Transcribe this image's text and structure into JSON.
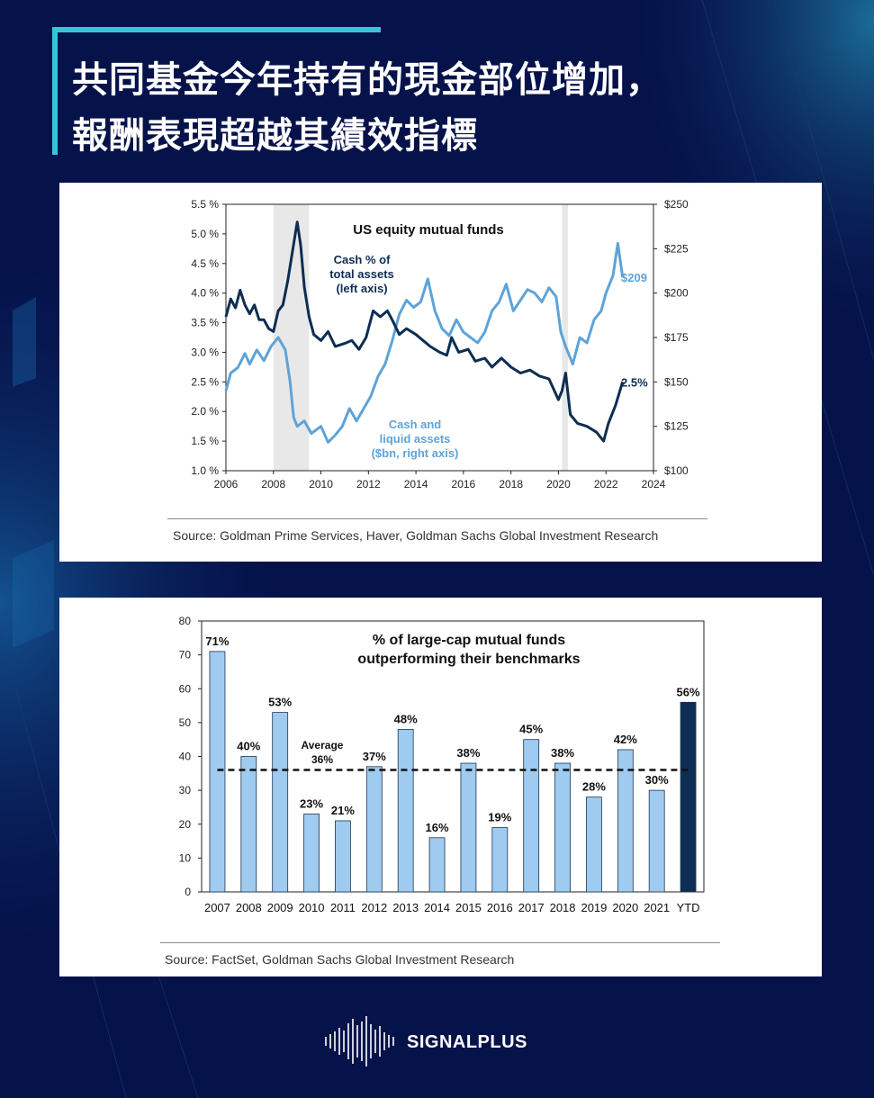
{
  "header": {
    "title_line1": "共同基金今年持有的現金部位增加，",
    "title_line2": "報酬表現超越其績效指標"
  },
  "brand": {
    "name": "SIGNALPLUS",
    "logo_icon": "soundwave-logo-icon"
  },
  "colors": {
    "background": "#06124a",
    "accent": "#39c4d9",
    "dark_series": "#0d2d52",
    "light_series": "#5ea3d8",
    "recession": "#e8e8e8"
  },
  "chart_data": [
    {
      "type": "line",
      "title": "US equity mutual funds",
      "x_ticks": [
        "2006",
        "2008",
        "2010",
        "2012",
        "2014",
        "2016",
        "2018",
        "2020",
        "2022",
        "2024"
      ],
      "xlim": [
        2006,
        2024
      ],
      "y_left": {
        "ticks": [
          "5.5 %",
          "5.0 %",
          "4.5 %",
          "4.0 %",
          "3.5 %",
          "3.0 %",
          "2.5 %",
          "2.0 %",
          "1.5 %",
          "1.0 %"
        ],
        "lim": [
          1.0,
          5.5
        ]
      },
      "y_right": {
        "ticks": [
          "$250",
          "$225",
          "$200",
          "$175",
          "$150",
          "$125",
          "$100"
        ],
        "lim": [
          100,
          250
        ]
      },
      "shaded_periods": [
        [
          2008.0,
          2009.5
        ],
        [
          2020.15,
          2020.4
        ]
      ],
      "series": [
        {
          "name": "Cash % of\ntotal assets\n(left axis)",
          "axis": "left",
          "end_label": "2.5%",
          "points": [
            [
              2006.0,
              3.6
            ],
            [
              2006.2,
              3.9
            ],
            [
              2006.4,
              3.75
            ],
            [
              2006.6,
              4.05
            ],
            [
              2006.8,
              3.8
            ],
            [
              2007.0,
              3.65
            ],
            [
              2007.2,
              3.8
            ],
            [
              2007.4,
              3.55
            ],
            [
              2007.6,
              3.55
            ],
            [
              2007.8,
              3.4
            ],
            [
              2008.0,
              3.35
            ],
            [
              2008.2,
              3.7
            ],
            [
              2008.4,
              3.8
            ],
            [
              2008.6,
              4.2
            ],
            [
              2008.8,
              4.7
            ],
            [
              2009.0,
              5.2
            ],
            [
              2009.15,
              4.8
            ],
            [
              2009.3,
              4.1
            ],
            [
              2009.5,
              3.6
            ],
            [
              2009.7,
              3.3
            ],
            [
              2010.0,
              3.2
            ],
            [
              2010.3,
              3.35
            ],
            [
              2010.6,
              3.1
            ],
            [
              2011.0,
              3.15
            ],
            [
              2011.3,
              3.2
            ],
            [
              2011.6,
              3.05
            ],
            [
              2011.9,
              3.25
            ],
            [
              2012.2,
              3.7
            ],
            [
              2012.5,
              3.6
            ],
            [
              2012.8,
              3.7
            ],
            [
              2013.0,
              3.55
            ],
            [
              2013.3,
              3.3
            ],
            [
              2013.6,
              3.4
            ],
            [
              2014.0,
              3.3
            ],
            [
              2014.3,
              3.2
            ],
            [
              2014.6,
              3.1
            ],
            [
              2015.0,
              3.0
            ],
            [
              2015.3,
              2.95
            ],
            [
              2015.5,
              3.25
            ],
            [
              2015.8,
              3.0
            ],
            [
              2016.2,
              3.05
            ],
            [
              2016.5,
              2.85
            ],
            [
              2016.9,
              2.9
            ],
            [
              2017.2,
              2.75
            ],
            [
              2017.6,
              2.9
            ],
            [
              2018.0,
              2.75
            ],
            [
              2018.4,
              2.65
            ],
            [
              2018.8,
              2.7
            ],
            [
              2019.2,
              2.6
            ],
            [
              2019.6,
              2.55
            ],
            [
              2020.0,
              2.2
            ],
            [
              2020.15,
              2.35
            ],
            [
              2020.3,
              2.65
            ],
            [
              2020.5,
              1.95
            ],
            [
              2020.8,
              1.8
            ],
            [
              2021.2,
              1.75
            ],
            [
              2021.6,
              1.65
            ],
            [
              2021.9,
              1.5
            ],
            [
              2022.1,
              1.8
            ],
            [
              2022.4,
              2.1
            ],
            [
              2022.7,
              2.5
            ]
          ]
        },
        {
          "name": "Cash and\nliquid assets\n($bn, right axis)",
          "axis": "right",
          "end_label": "$209",
          "points": [
            [
              2006.0,
              145
            ],
            [
              2006.2,
              155
            ],
            [
              2006.5,
              158
            ],
            [
              2006.8,
              166
            ],
            [
              2007.0,
              160
            ],
            [
              2007.3,
              168
            ],
            [
              2007.6,
              162
            ],
            [
              2007.9,
              170
            ],
            [
              2008.2,
              175
            ],
            [
              2008.5,
              168
            ],
            [
              2008.7,
              150
            ],
            [
              2008.85,
              130
            ],
            [
              2009.0,
              125
            ],
            [
              2009.3,
              128
            ],
            [
              2009.6,
              121
            ],
            [
              2010.0,
              125
            ],
            [
              2010.3,
              116
            ],
            [
              2010.6,
              120
            ],
            [
              2010.9,
              125
            ],
            [
              2011.2,
              135
            ],
            [
              2011.5,
              128
            ],
            [
              2011.8,
              135
            ],
            [
              2012.1,
              142
            ],
            [
              2012.4,
              153
            ],
            [
              2012.7,
              160
            ],
            [
              2013.0,
              173
            ],
            [
              2013.3,
              188
            ],
            [
              2013.6,
              196
            ],
            [
              2013.9,
              192
            ],
            [
              2014.2,
              195
            ],
            [
              2014.5,
              208
            ],
            [
              2014.8,
              190
            ],
            [
              2015.1,
              180
            ],
            [
              2015.4,
              176
            ],
            [
              2015.7,
              185
            ],
            [
              2016.0,
              178
            ],
            [
              2016.3,
              175
            ],
            [
              2016.6,
              172
            ],
            [
              2016.9,
              178
            ],
            [
              2017.2,
              190
            ],
            [
              2017.5,
              195
            ],
            [
              2017.8,
              205
            ],
            [
              2018.1,
              190
            ],
            [
              2018.4,
              196
            ],
            [
              2018.7,
              202
            ],
            [
              2019.0,
              200
            ],
            [
              2019.3,
              195
            ],
            [
              2019.6,
              203
            ],
            [
              2019.9,
              198
            ],
            [
              2020.1,
              178
            ],
            [
              2020.3,
              170
            ],
            [
              2020.6,
              160
            ],
            [
              2020.9,
              175
            ],
            [
              2021.2,
              172
            ],
            [
              2021.5,
              185
            ],
            [
              2021.8,
              190
            ],
            [
              2022.0,
              200
            ],
            [
              2022.3,
              210
            ],
            [
              2022.5,
              228
            ],
            [
              2022.7,
              209
            ]
          ]
        }
      ]
    },
    {
      "type": "bar",
      "title": "% of large-cap mutual funds\noutperforming their benchmarks",
      "categories": [
        "2007",
        "2008",
        "2009",
        "2010",
        "2011",
        "2012",
        "2013",
        "2014",
        "2015",
        "2016",
        "2017",
        "2018",
        "2019",
        "2020",
        "2021",
        "YTD"
      ],
      "values": [
        71,
        40,
        53,
        23,
        21,
        37,
        48,
        16,
        38,
        19,
        45,
        38,
        28,
        42,
        30,
        56
      ],
      "data_labels": [
        "71%",
        "40%",
        "53%",
        "23%",
        "21%",
        "37%",
        "48%",
        "16%",
        "38%",
        "19%",
        "45%",
        "38%",
        "28%",
        "42%",
        "30%",
        "56%"
      ],
      "highlight_index": 15,
      "ylim": [
        0,
        80
      ],
      "y_ticks": [
        "0",
        "10",
        "20",
        "30",
        "40",
        "50",
        "60",
        "70",
        "80"
      ],
      "reference_line": {
        "value": 36,
        "label_line1": "Average",
        "label_line2": "36%"
      }
    }
  ],
  "sources": {
    "chart1": "Source: Goldman Prime Services, Haver, Goldman Sachs Global Investment Research",
    "chart2": "Source: FactSet, Goldman Sachs Global Investment Research"
  }
}
